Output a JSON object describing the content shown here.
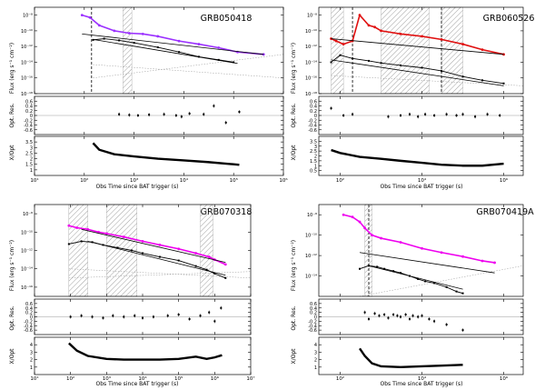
{
  "x_axis_label": "Obs Time since BAT trigger (s)",
  "flux_label": "Flux (erg s⁻¹ cm⁻²)",
  "res_label": "Opt. Res.",
  "ratio_label": "X/Opt",
  "colors": {
    "ink": "#000000",
    "grb050418": "#9b30ff",
    "grb060526": "#e01010",
    "grb060526_b": "#ff8c00",
    "grb070318": "#ee00ee",
    "grb070419a": "#ee00ee",
    "hatch": "#888888",
    "guide": "#999999"
  },
  "chart_data": [
    {
      "type": "line",
      "title": "GRB050418",
      "xlim": [
        10,
        1000000
      ],
      "flux_ylim": [
        1e-18,
        1e-07
      ],
      "res_ylim": [
        -0.8,
        0.8
      ],
      "ratio_ylim": [
        0.5,
        4
      ],
      "x_ticks": [
        {
          "v": 10,
          "t": "10¹"
        },
        {
          "v": 100,
          "t": "10²"
        },
        {
          "v": 1000,
          "t": "10³"
        },
        {
          "v": 10000,
          "t": "10⁴"
        },
        {
          "v": 100000,
          "t": "10⁵"
        },
        {
          "v": 1000000,
          "t": "10⁶"
        }
      ],
      "flux_ticks": [
        {
          "v": 1e-08,
          "t": "10⁻⁸"
        },
        {
          "v": 1e-10,
          "t": "10⁻¹⁰"
        },
        {
          "v": 1e-12,
          "t": "10⁻¹²"
        },
        {
          "v": 1e-14,
          "t": "10⁻¹⁴"
        },
        {
          "v": 1e-16,
          "t": "10⁻¹⁶"
        },
        {
          "v": 1e-18,
          "t": "10⁻¹⁸"
        }
      ],
      "res_ticks": [
        {
          "v": 0.6,
          "t": "0.6"
        },
        {
          "v": 0.4,
          "t": "0.4"
        },
        {
          "v": 0.2,
          "t": "0.2"
        },
        {
          "v": 0,
          "t": "0"
        },
        {
          "v": -0.2,
          "t": "-0.2"
        },
        {
          "v": -0.4,
          "t": "-0.4"
        },
        {
          "v": -0.6,
          "t": "-0.6"
        }
      ],
      "ratio_ticks": [
        {
          "v": 1,
          "t": "1"
        },
        {
          "v": 1.5,
          "t": "1.5"
        },
        {
          "v": 2,
          "t": "2"
        },
        {
          "v": 2.5,
          "t": "2.5"
        },
        {
          "v": 3,
          "t": "3"
        },
        {
          "v": 3.5,
          "t": "3.5"
        }
      ],
      "hatch": [
        [
          600,
          900
        ]
      ],
      "dashed": [
        140
      ],
      "xray": {
        "x": [
          90,
          130,
          200,
          400,
          800,
          1500,
          3000,
          8000,
          20000,
          50000,
          120000,
          400000
        ],
        "y": [
          1e-08,
          5e-09,
          5e-10,
          1e-10,
          5e-11,
          4e-11,
          2e-11,
          5e-12,
          2e-12,
          7e-13,
          2e-13,
          1e-13
        ]
      },
      "optical": {
        "x": [
          150,
          250,
          500,
          1000,
          3000,
          8000,
          20000,
          50000,
          100000
        ],
        "y": [
          7e-12,
          1e-11,
          6e-12,
          3e-12,
          8e-13,
          2e-13,
          5e-14,
          2e-14,
          1e-14
        ]
      },
      "fit_x": {
        "x": [
          90,
          400000
        ],
        "y": [
          4e-11,
          1e-13
        ]
      },
      "fit_opt": {
        "x": [
          150,
          120000
        ],
        "y": [
          8e-12,
          7e-15
        ]
      },
      "guides": [
        {
          "x": [
            150,
            1000000
          ],
          "y": [
            1e-16,
            1e-13
          ]
        },
        {
          "x": [
            150,
            1000000
          ],
          "y": [
            5e-15,
            1e-16
          ]
        }
      ],
      "res_points": {
        "x": [
          500,
          800,
          1200,
          2000,
          4000,
          7000,
          9000,
          13000,
          25000,
          40000,
          70000,
          130000
        ],
        "y": [
          0.05,
          0.02,
          0.0,
          0.03,
          0.05,
          0.0,
          -0.05,
          0.08,
          0.05,
          0.4,
          -0.3,
          0.15
        ]
      },
      "ratio_curve": {
        "x": [
          150,
          200,
          400,
          1000,
          3000,
          10000,
          30000,
          100000,
          130000
        ],
        "y": [
          3.4,
          2.8,
          2.4,
          2.2,
          2.0,
          1.85,
          1.7,
          1.5,
          1.45
        ]
      }
    },
    {
      "type": "line",
      "title": "GRB060526",
      "xlim": [
        30,
        3000000
      ],
      "flux_ylim": [
        1e-18,
        1e-07
      ],
      "res_ylim": [
        -0.8,
        0.8
      ],
      "ratio_ylim": [
        0,
        4
      ],
      "x_ticks": [
        {
          "v": 100,
          "t": "10²"
        },
        {
          "v": 10000,
          "t": "10⁴"
        },
        {
          "v": 1000000,
          "t": "10⁶"
        }
      ],
      "flux_ticks": [
        {
          "v": 1e-08,
          "t": "10⁻⁸"
        },
        {
          "v": 1e-10,
          "t": "10⁻¹⁰"
        },
        {
          "v": 1e-12,
          "t": "10⁻¹²"
        },
        {
          "v": 1e-14,
          "t": "10⁻¹⁴"
        },
        {
          "v": 1e-16,
          "t": "10⁻¹⁶"
        },
        {
          "v": 1e-18,
          "t": "10⁻¹⁸"
        }
      ],
      "res_ticks": [
        {
          "v": 0.6,
          "t": "0.6"
        },
        {
          "v": 0.4,
          "t": "0.4"
        },
        {
          "v": 0.2,
          "t": "0.2"
        },
        {
          "v": 0,
          "t": "0"
        },
        {
          "v": -0.2,
          "t": "-0.2"
        },
        {
          "v": -0.4,
          "t": "-0.4"
        },
        {
          "v": -0.6,
          "t": "-0.6"
        }
      ],
      "ratio_ticks": [
        {
          "v": 0.5,
          "t": "0.5"
        },
        {
          "v": 1,
          "t": "1"
        },
        {
          "v": 1.5,
          "t": "1.5"
        },
        {
          "v": 2,
          "t": "2"
        },
        {
          "v": 2.5,
          "t": "2.5"
        },
        {
          "v": 3,
          "t": "3"
        },
        {
          "v": 3.5,
          "t": "3.5"
        }
      ],
      "hatch": [
        [
          60,
          120
        ],
        [
          1000,
          15000
        ],
        [
          30000,
          100000
        ]
      ],
      "dashed": [
        200,
        30000
      ],
      "xray": {
        "x": [
          60,
          80,
          120,
          200,
          300,
          500,
          700,
          1000,
          3000,
          10000,
          30000,
          100000,
          300000,
          1000000
        ],
        "y": [
          1e-11,
          5e-12,
          2e-12,
          5e-12,
          1e-08,
          5e-10,
          3e-10,
          1e-10,
          4e-11,
          2e-11,
          8e-12,
          2e-12,
          4e-13,
          1e-13
        ]
      },
      "optical": {
        "x": [
          60,
          100,
          200,
          500,
          1000,
          3000,
          10000,
          30000,
          100000,
          300000,
          1000000
        ],
        "y": [
          1e-14,
          8e-14,
          3e-14,
          1.5e-14,
          8e-15,
          4e-15,
          2e-15,
          8e-16,
          1.5e-16,
          5e-17,
          2e-17
        ]
      },
      "fit_x": {
        "x": [
          60,
          1000000
        ],
        "y": [
          1e-11,
          1e-13
        ]
      },
      "fit_opt": {
        "x": [
          60,
          1000000
        ],
        "y": [
          2e-14,
          1e-17
        ]
      },
      "guides": [
        {
          "x": [
            60,
            3000000
          ],
          "y": [
            2e-16,
            1e-17
          ]
        }
      ],
      "res_points": {
        "x": [
          60,
          120,
          200,
          1500,
          3000,
          5000,
          8000,
          12000,
          20000,
          40000,
          70000,
          100000,
          200000,
          400000,
          800000
        ],
        "y": [
          0.3,
          0.0,
          0.05,
          -0.05,
          0.0,
          0.05,
          -0.05,
          0.05,
          0.0,
          0.05,
          0.0,
          0.05,
          -0.05,
          0.05,
          0.0
        ]
      },
      "ratio_curve": {
        "x": [
          60,
          100,
          300,
          1000,
          3000,
          10000,
          30000,
          100000,
          300000,
          1000000
        ],
        "y": [
          2.6,
          2.3,
          1.9,
          1.7,
          1.5,
          1.3,
          1.1,
          1.0,
          1.0,
          1.2
        ]
      }
    },
    {
      "type": "line",
      "title": "GRB070318",
      "xlim": [
        10,
        10000000
      ],
      "flux_ylim": [
        1e-17,
        1e-07
      ],
      "res_ylim": [
        -0.8,
        0.8
      ],
      "ratio_ylim": [
        0,
        5
      ],
      "x_ticks": [
        {
          "v": 10,
          "t": "10¹"
        },
        {
          "v": 100,
          "t": "10²"
        },
        {
          "v": 1000,
          "t": "10³"
        },
        {
          "v": 10000,
          "t": "10⁴"
        },
        {
          "v": 100000,
          "t": "10⁵"
        },
        {
          "v": 1000000,
          "t": "10⁶"
        },
        {
          "v": 10000000,
          "t": "10⁷"
        }
      ],
      "flux_ticks": [
        {
          "v": 1e-08,
          "t": "10⁻⁸"
        },
        {
          "v": 1e-10,
          "t": "10⁻¹⁰"
        },
        {
          "v": 1e-12,
          "t": "10⁻¹²"
        },
        {
          "v": 1e-14,
          "t": "10⁻¹⁴"
        },
        {
          "v": 1e-16,
          "t": "10⁻¹⁶"
        }
      ],
      "res_ticks": [
        {
          "v": 0.6,
          "t": "0.6"
        },
        {
          "v": 0.4,
          "t": "0.4"
        },
        {
          "v": 0.2,
          "t": "0.2"
        },
        {
          "v": 0,
          "t": "0"
        },
        {
          "v": -0.2,
          "t": "-0.2"
        },
        {
          "v": -0.4,
          "t": "-0.4"
        },
        {
          "v": -0.6,
          "t": "-0.6"
        }
      ],
      "ratio_ticks": [
        {
          "v": 1,
          "t": "1"
        },
        {
          "v": 2,
          "t": "2"
        },
        {
          "v": 3,
          "t": "3"
        },
        {
          "v": 4,
          "t": "4"
        }
      ],
      "hatch": [
        [
          90,
          300
        ],
        [
          1000,
          7000
        ],
        [
          400000,
          900000
        ]
      ],
      "dashed": [],
      "xray": {
        "x": [
          90,
          150,
          300,
          600,
          1000,
          3000,
          10000,
          30000,
          100000,
          300000,
          700000,
          1000000,
          2000000
        ],
        "y": [
          5e-10,
          3e-10,
          2e-10,
          1e-10,
          7e-11,
          3e-11,
          1e-11,
          4e-12,
          1.5e-12,
          5e-13,
          2e-13,
          1e-13,
          3e-14
        ]
      },
      "optical": {
        "x": [
          90,
          200,
          400,
          800,
          2000,
          5000,
          10000,
          30000,
          100000,
          300000,
          600000,
          1000000,
          2000000
        ],
        "y": [
          5e-12,
          1e-11,
          8e-12,
          4e-12,
          2e-12,
          1e-12,
          5e-13,
          2e-13,
          8e-14,
          2e-14,
          8e-15,
          3e-15,
          1e-15
        ]
      },
      "fit_x": {
        "x": [
          200,
          2000000
        ],
        "y": [
          2e-10,
          5e-14
        ]
      },
      "fit_opt": {
        "x": [
          300,
          2000000
        ],
        "y": [
          1e-11,
          2e-15
        ]
      },
      "guides": [
        {
          "x": [
            90,
            10000000
          ],
          "y": [
            1e-14,
            1e-15
          ]
        },
        {
          "x": [
            90,
            10000000
          ],
          "y": [
            1e-15,
            5e-15
          ]
        }
      ],
      "res_points": {
        "x": [
          100,
          200,
          400,
          800,
          1500,
          3000,
          6000,
          10000,
          20000,
          50000,
          100000,
          200000,
          400000,
          700000,
          1000000,
          1500000
        ],
        "y": [
          0.0,
          0.05,
          0.0,
          -0.05,
          0.05,
          0.0,
          0.05,
          -0.05,
          0.0,
          0.05,
          0.1,
          -0.1,
          0.05,
          0.2,
          -0.2,
          0.4
        ]
      },
      "ratio_curve": {
        "x": [
          90,
          150,
          300,
          1000,
          3000,
          10000,
          30000,
          100000,
          300000,
          600000,
          1000000,
          1600000
        ],
        "y": [
          4.2,
          3.2,
          2.5,
          2.1,
          2.0,
          2.0,
          2.0,
          2.1,
          2.4,
          2.1,
          2.3,
          2.6
        ]
      }
    },
    {
      "type": "line",
      "title": "GRB070419A",
      "xlim": [
        30,
        3000000
      ],
      "flux_ylim": [
        1e-16,
        1e-07
      ],
      "res_ylim": [
        -0.8,
        0.8
      ],
      "ratio_ylim": [
        0,
        5
      ],
      "x_ticks": [
        {
          "v": 100,
          "t": "10²"
        },
        {
          "v": 10000,
          "t": "10⁴"
        },
        {
          "v": 1000000,
          "t": "10⁶"
        }
      ],
      "flux_ticks": [
        {
          "v": 1e-08,
          "t": "10⁻⁸"
        },
        {
          "v": 1e-10,
          "t": "10⁻¹⁰"
        },
        {
          "v": 1e-12,
          "t": "10⁻¹²"
        },
        {
          "v": 1e-14,
          "t": "10⁻¹⁴"
        }
      ],
      "res_ticks": [
        {
          "v": 0.6,
          "t": "0.6"
        },
        {
          "v": 0.4,
          "t": "0.4"
        },
        {
          "v": 0.2,
          "t": "0.2"
        },
        {
          "v": 0,
          "t": "0"
        },
        {
          "v": -0.2,
          "t": "-0.2"
        },
        {
          "v": -0.4,
          "t": "-0.4"
        },
        {
          "v": -0.6,
          "t": "-0.6"
        }
      ],
      "ratio_ticks": [
        {
          "v": 1,
          "t": "1"
        },
        {
          "v": 2,
          "t": "2"
        },
        {
          "v": 3,
          "t": "3"
        },
        {
          "v": 4,
          "t": "4"
        }
      ],
      "hatch": [
        [
          400,
          600
        ]
      ],
      "dashed": [
        500
      ],
      "xray": {
        "x": [
          120,
          200,
          300,
          400,
          600,
          1000,
          3000,
          10000,
          30000,
          100000,
          300000,
          600000
        ],
        "y": [
          1e-08,
          6e-09,
          2e-09,
          5e-10,
          1e-10,
          5e-11,
          2e-11,
          5e-12,
          2e-12,
          8e-13,
          3e-13,
          2e-13
        ]
      },
      "optical": {
        "x": [
          300,
          500,
          800,
          1200,
          2000,
          3000,
          5000,
          8000,
          12000,
          20000,
          40000,
          70000,
          100000
        ],
        "y": [
          5e-14,
          1e-13,
          8e-14,
          5e-14,
          3e-14,
          2e-14,
          1e-14,
          5e-15,
          3e-15,
          2e-15,
          8e-16,
          3e-16,
          2e-16
        ]
      },
      "fit_x": {
        "x": [
          300,
          600000
        ],
        "y": [
          2e-12,
          2e-14
        ]
      },
      "fit_opt": {
        "x": [
          500,
          100000
        ],
        "y": [
          1e-13,
          5e-16
        ]
      },
      "guides": [
        {
          "x": [
            300,
            3000000
          ],
          "y": [
            1e-16,
            1e-13
          ]
        }
      ],
      "res_points": {
        "x": [
          400,
          500,
          700,
          900,
          1200,
          1500,
          2000,
          2500,
          3000,
          4000,
          5000,
          6000,
          8000,
          10000,
          15000,
          20000,
          40000,
          100000
        ],
        "y": [
          0.2,
          -0.1,
          0.15,
          0.05,
          0.1,
          -0.05,
          0.1,
          0.05,
          0.0,
          0.1,
          -0.1,
          0.05,
          0.0,
          0.05,
          -0.1,
          -0.2,
          -0.35,
          -0.6
        ]
      },
      "ratio_curve": {
        "x": [
          300,
          400,
          600,
          1000,
          3000,
          10000,
          30000,
          100000
        ],
        "y": [
          3.5,
          2.5,
          1.5,
          1.1,
          1.0,
          1.1,
          1.2,
          1.3
        ]
      }
    }
  ]
}
